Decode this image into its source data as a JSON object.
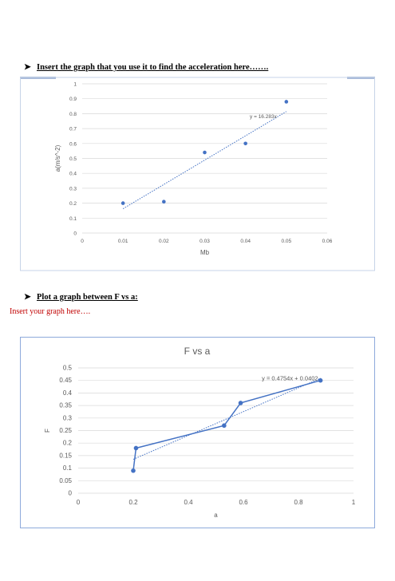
{
  "section1": {
    "arrow": "➤",
    "heading": "Insert the graph that you use it to find the acceleration here……."
  },
  "section2": {
    "arrow": "➤",
    "heading": "Plot a graph between F vs a:",
    "note": "Insert your graph here…."
  },
  "colors": {
    "series": "#4472c4",
    "grid": "#d9d9d9",
    "note_red": "#c00000",
    "frame_border": "#a6b8d8"
  },
  "chart_data": [
    {
      "type": "scatter",
      "title": "",
      "xlabel": "Mb",
      "ylabel": "a(m/s^-2)",
      "xlim": [
        0,
        0.06
      ],
      "ylim": [
        0,
        1
      ],
      "x_ticks": [
        "0",
        "0.01",
        "0.02",
        "0.03",
        "0.04",
        "0.05",
        "0.06"
      ],
      "y_ticks": [
        "0",
        "0.1",
        "0.2",
        "0.3",
        "0.4",
        "0.5",
        "0.6",
        "0.7",
        "0.8",
        "0.9",
        "1"
      ],
      "grid": true,
      "series": [
        {
          "x": [
            0.01,
            0.02,
            0.03,
            0.04,
            0.05
          ],
          "y": [
            0.2,
            0.21,
            0.54,
            0.6,
            0.88
          ]
        }
      ],
      "trendline": {
        "style": "dotted",
        "label": "y = 16.283x",
        "x_range": [
          0.01,
          0.05
        ],
        "slope": 16.283,
        "intercept": 0
      }
    },
    {
      "type": "line",
      "title": "F vs a",
      "xlabel": "a",
      "ylabel": "F",
      "xlim": [
        0,
        1
      ],
      "ylim": [
        0,
        0.5
      ],
      "x_ticks": [
        "0",
        "0.2",
        "0.4",
        "0.6",
        "0.8",
        "1"
      ],
      "y_ticks": [
        "0",
        "0.05",
        "0.1",
        "0.15",
        "0.2",
        "0.25",
        "0.3",
        "0.35",
        "0.4",
        "0.45",
        "0.5"
      ],
      "grid": true,
      "series": [
        {
          "x": [
            0.2,
            0.21,
            0.53,
            0.59,
            0.88
          ],
          "y": [
            0.09,
            0.18,
            0.27,
            0.36,
            0.45
          ]
        }
      ],
      "trendline": {
        "style": "dotted",
        "label": "y = 0.4754x + 0.0402",
        "x_range": [
          0.2,
          0.88
        ],
        "slope": 0.4754,
        "intercept": 0.0402
      }
    }
  ]
}
